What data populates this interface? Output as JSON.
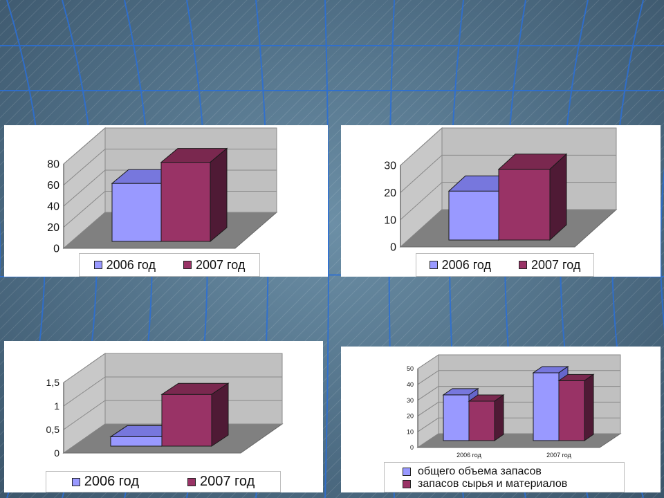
{
  "colors": {
    "series_2006": "#9999ff",
    "series_2006_top": "#7777dd",
    "series_2006_side": "#6666cc",
    "series_2007": "#993366",
    "series_2007_top": "#7a284f",
    "series_2007_side": "#4f1a35",
    "wall": "#c0c0c0",
    "floor": "#808080"
  },
  "chart_data": [
    {
      "type": "bar",
      "categories": [
        ""
      ],
      "series": [
        {
          "name": "2006 год",
          "values": [
            55
          ]
        },
        {
          "name": "2007 год",
          "values": [
            75
          ]
        }
      ],
      "ylim": [
        0,
        80
      ],
      "yticks": [
        "0",
        "20",
        "40",
        "60",
        "80"
      ],
      "grid": true,
      "legend": "bottom"
    },
    {
      "type": "bar",
      "categories": [
        ""
      ],
      "series": [
        {
          "name": "2006 год",
          "values": [
            18
          ]
        },
        {
          "name": "2007 год",
          "values": [
            26
          ]
        }
      ],
      "ylim": [
        0,
        30
      ],
      "yticks": [
        "0",
        "10",
        "20",
        "30"
      ],
      "grid": true,
      "legend": "bottom"
    },
    {
      "type": "bar",
      "categories": [
        ""
      ],
      "series": [
        {
          "name": "2006 год",
          "values": [
            0.2
          ]
        },
        {
          "name": "2007 год",
          "values": [
            1.1
          ]
        }
      ],
      "ylim": [
        0,
        1.5
      ],
      "yticks": [
        "0",
        "0,5",
        "1",
        "1,5"
      ],
      "grid": true,
      "legend": "bottom"
    },
    {
      "type": "bar",
      "categories": [
        "2006 год",
        "2007 год"
      ],
      "series": [
        {
          "name": "общего объема запасов",
          "values": [
            29,
            43
          ]
        },
        {
          "name": "запасов сырья и материалов",
          "values": [
            25,
            38
          ]
        }
      ],
      "ylim": [
        0,
        50
      ],
      "yticks": [
        "0",
        "10",
        "20",
        "30",
        "40",
        "50"
      ],
      "grid": true,
      "legend": "bottom"
    }
  ]
}
